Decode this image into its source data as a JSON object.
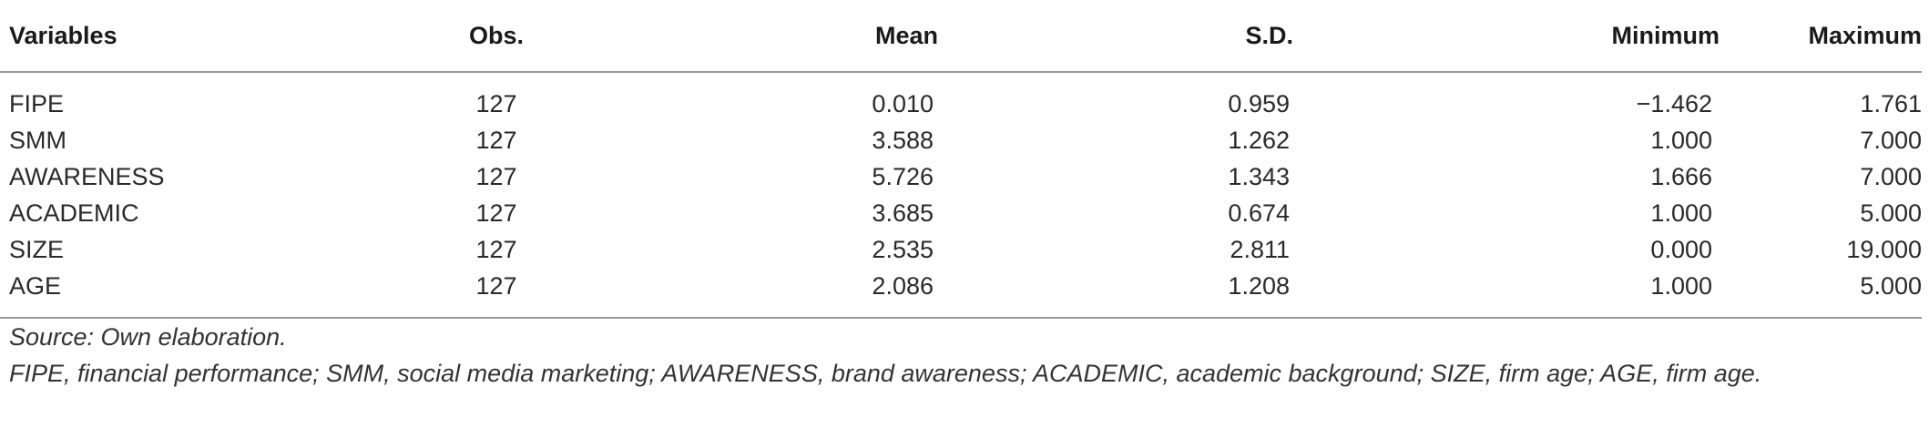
{
  "table": {
    "columns": [
      "Variables",
      "Obs.",
      "Mean",
      "S.D.",
      "Minimum",
      "Maximum"
    ],
    "rows": [
      [
        "FIPE",
        "127",
        "0.010",
        "0.959",
        "−1.462",
        "1.761"
      ],
      [
        "SMM",
        "127",
        "3.588",
        "1.262",
        "1.000",
        "7.000"
      ],
      [
        "AWARENESS",
        "127",
        "5.726",
        "1.343",
        "1.666",
        "7.000"
      ],
      [
        "ACADEMIC",
        "127",
        "3.685",
        "0.674",
        "1.000",
        "5.000"
      ],
      [
        "SIZE",
        "127",
        "2.535",
        "2.811",
        "0.000",
        "19.000"
      ],
      [
        "AGE",
        "127",
        "2.086",
        "1.208",
        "1.000",
        "5.000"
      ]
    ]
  },
  "notes": {
    "source": "Source: Own elaboration.",
    "abbreviations": "FIPE, financial performance; SMM, social media marketing; AWARENESS, brand awareness; ACADEMIC, academic background; SIZE, firm age; AGE, firm age."
  }
}
